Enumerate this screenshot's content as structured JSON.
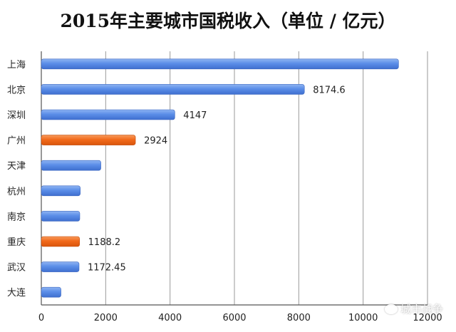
{
  "chart_data": {
    "type": "bar",
    "orientation": "horizontal",
    "title": "2015年主要城市国税收入（单位 / 亿元）",
    "categories": [
      "上海",
      "北京",
      "深圳",
      "广州",
      "天津",
      "杭州",
      "南京",
      "重庆",
      "武汉",
      "大连"
    ],
    "values": [
      11100,
      8174.6,
      4147,
      2924,
      1850,
      1210,
      1195,
      1188.2,
      1172.45,
      610
    ],
    "data_labels": [
      "",
      "8174.6",
      "4147",
      "2924",
      "",
      "",
      "",
      "1188.2",
      "1172.45",
      ""
    ],
    "highlighted": [
      "广州",
      "重庆"
    ],
    "colors": {
      "default": "#5b8ee8",
      "highlight": "#f26a1b"
    },
    "xlim": [
      0,
      12000
    ],
    "xticks": [
      0,
      2000,
      4000,
      6000,
      8000,
      10000,
      12000
    ],
    "xlabel": "",
    "ylabel": "",
    "grid": true,
    "legend": "none"
  },
  "watermark": {
    "text": "城市战争",
    "icon": "wechat-icon"
  }
}
